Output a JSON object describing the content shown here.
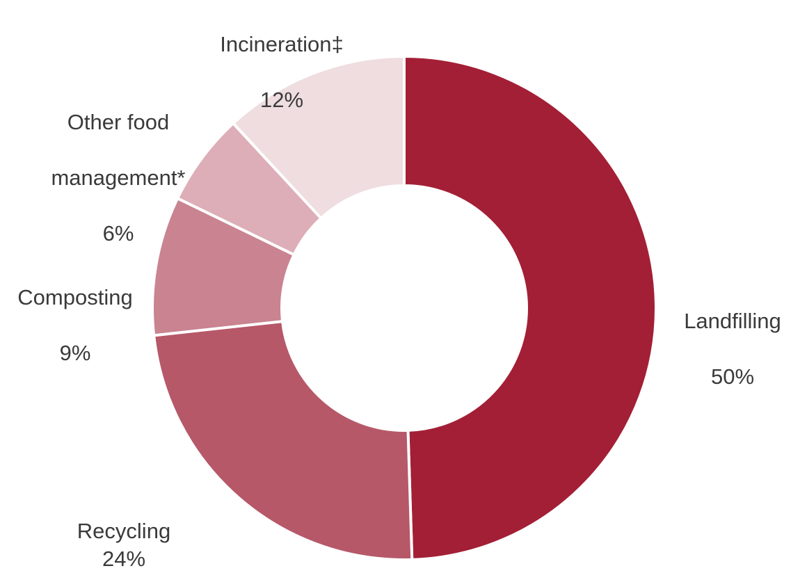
{
  "chart_data": {
    "type": "pie",
    "donut": true,
    "title": "",
    "categories": [
      "Landfilling",
      "Recycling",
      "Composting",
      "Other food management*",
      "Incineration‡"
    ],
    "values": [
      50,
      24,
      9,
      6,
      12
    ],
    "value_labels": [
      "50%",
      "24%",
      "9%",
      "6%",
      "12%"
    ],
    "colors": [
      "#a31f35",
      "#b65868",
      "#c98391",
      "#ddaeb7",
      "#efdde0"
    ],
    "legend": "none",
    "start_angle": "12 o'clock",
    "direction": "clockwise"
  },
  "labels": {
    "landfilling": {
      "name": "Landfilling",
      "value": "50%"
    },
    "recycling": {
      "name": "Recycling",
      "value": "24%"
    },
    "composting": {
      "name": "Composting",
      "value": "9%"
    },
    "other": {
      "line1": "Other food",
      "line2": "management*",
      "value": "6%"
    },
    "incineration": {
      "name": "Incineration‡",
      "value": "12%"
    }
  }
}
